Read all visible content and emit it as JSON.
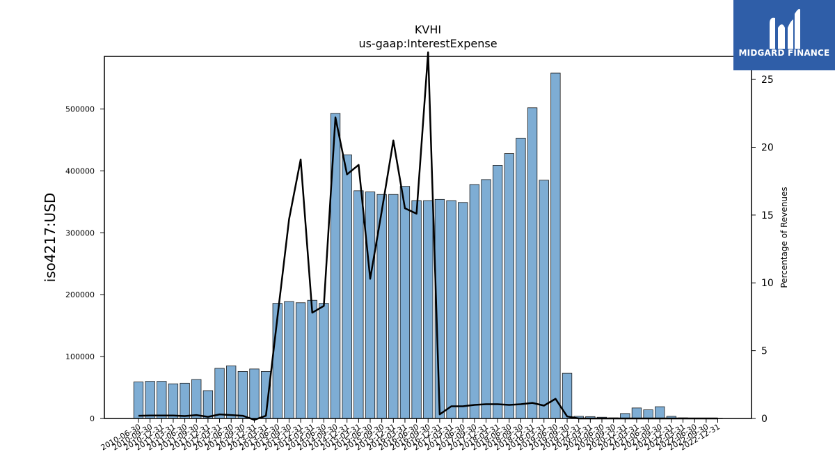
{
  "chart_data": {
    "type": "bar",
    "title": "KVHI",
    "subtitle": "us-gaap:InterestExpense",
    "ylabel": "iso4217:USD",
    "y2label": "Percentage of Revenues",
    "ylim": [
      0,
      585000
    ],
    "y2lim": [
      0,
      26.7
    ],
    "yticks": [
      0,
      100000,
      200000,
      300000,
      400000,
      500000
    ],
    "y2ticks": [
      0,
      5,
      10,
      15,
      20,
      25
    ],
    "categories": [
      "2010-06-30",
      "2010-09-30",
      "2010-12-31",
      "2011-03-31",
      "2011-06-30",
      "2011-09-30",
      "2011-12-31",
      "2012-03-31",
      "2012-06-30",
      "2012-09-30",
      "2012-12-31",
      "2013-03-31",
      "2013-06-30",
      "2013-09-30",
      "2013-12-31",
      "2014-03-31",
      "2014-06-30",
      "2014-09-30",
      "2014-12-31",
      "2015-03-31",
      "2015-06-30",
      "2015-09-30",
      "2015-12-31",
      "2016-03-31",
      "2016-06-30",
      "2016-09-30",
      "2016-12-31",
      "2017-03-31",
      "2017-06-30",
      "2017-09-30",
      "2017-12-31",
      "2018-03-31",
      "2018-06-30",
      "2018-09-30",
      "2018-12-31",
      "2019-03-31",
      "2019-06-30",
      "2019-09-30",
      "2019-12-31",
      "2020-03-31",
      "2020-06-30",
      "2020-09-30",
      "2020-12-31",
      "2021-03-31",
      "2021-06-30",
      "2021-09-30",
      "2021-12-31",
      "2022-03-31",
      "2022-06-30",
      "2022-09-30",
      "2022-12-31"
    ],
    "series": [
      {
        "type": "bar",
        "values": [
          59000,
          60000,
          60000,
          56000,
          57000,
          63000,
          45000,
          81000,
          85000,
          76000,
          80000,
          76000,
          186000,
          189000,
          187000,
          191000,
          186000,
          493000,
          426000,
          368000,
          366000,
          362000,
          362000,
          375000,
          352000,
          352000,
          354000,
          352000,
          349000,
          378000,
          386000,
          409000,
          428000,
          453000,
          502000,
          385000,
          558000,
          73000,
          3500,
          3000,
          2000,
          1000,
          8000,
          17000,
          14000,
          19000,
          3500,
          1000,
          500,
          500,
          500
        ]
      },
      {
        "type": "line",
        "values": [
          0.2,
          0.22,
          0.22,
          0.22,
          0.18,
          0.25,
          0.12,
          0.3,
          0.25,
          0.2,
          -0.1,
          0.2,
          7.5,
          14.7,
          19.1,
          7.8,
          8.3,
          22.2,
          18.0,
          18.7,
          10.3,
          15.3,
          20.5,
          15.5,
          15.1,
          27.0,
          0.3,
          0.9,
          0.9,
          1.0,
          1.05,
          1.05,
          1.0,
          1.05,
          1.15,
          0.95,
          1.45,
          0.15,
          0.0,
          0.0,
          0.0,
          0.0,
          0.0,
          0.0,
          0.0,
          0.0,
          0.0,
          0.0,
          0.0,
          0.0,
          0.0
        ]
      }
    ],
    "colors": {
      "bar_fill": "#7eadd4",
      "bar_edge": "#1a1a1a",
      "line": "#000000"
    }
  },
  "logo": {
    "text": "MIDGARD FINANCE",
    "background": "#2f5ea8"
  }
}
